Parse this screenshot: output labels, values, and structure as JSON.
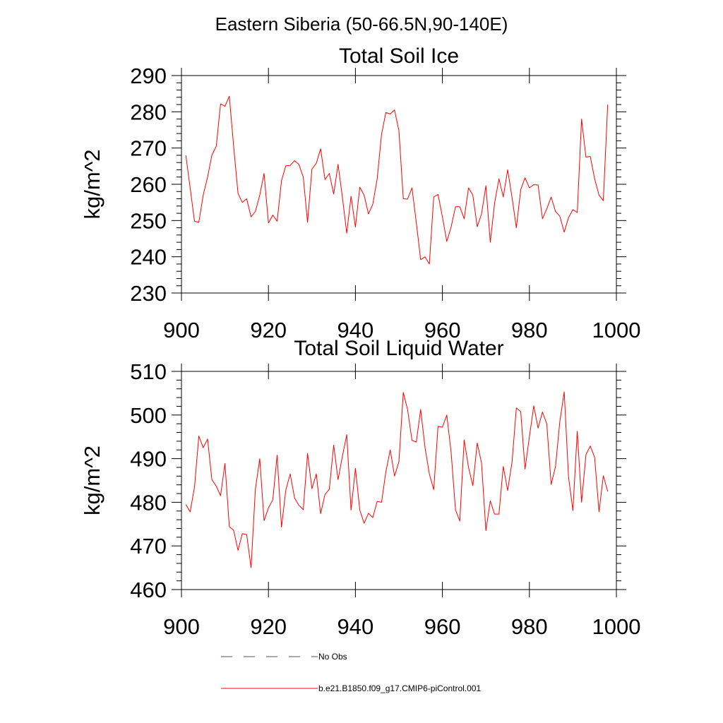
{
  "figure": {
    "title": "Eastern Siberia (50-66.5N,90-140E)"
  },
  "legend": [
    {
      "label": "No Obs",
      "color": "#4a4f8a",
      "style": "dashed"
    },
    {
      "label": "b.e21.B1850.f09_g17.CMIP6-piControl.001",
      "color": "#ff0000",
      "style": "solid"
    }
  ],
  "chart_data": [
    {
      "type": "line",
      "title": "Total Soil Ice",
      "ylabel": "kg/m^2",
      "xlabel": "",
      "xlim": [
        900,
        1000
      ],
      "ylim": [
        230,
        290
      ],
      "xticks": [
        900,
        920,
        940,
        960,
        980,
        1000
      ],
      "yticks": [
        230,
        240,
        250,
        260,
        270,
        280,
        290
      ],
      "grid": false,
      "series": [
        {
          "name": "b.e21.B1850.f09_g17.CMIP6-piControl.001",
          "color": "#ff0000",
          "x": [
            901,
            902,
            903,
            904,
            905,
            906,
            907,
            908,
            909,
            910,
            911,
            912,
            913,
            914,
            915,
            916,
            917,
            918,
            919,
            920,
            921,
            922,
            923,
            924,
            925,
            926,
            927,
            928,
            929,
            930,
            931,
            932,
            933,
            934,
            935,
            936,
            937,
            938,
            939,
            940,
            941,
            942,
            943,
            944,
            945,
            946,
            947,
            948,
            949,
            950,
            951,
            952,
            953,
            954,
            955,
            956,
            957,
            958,
            959,
            960,
            961,
            962,
            963,
            964,
            965,
            966,
            967,
            968,
            969,
            970,
            971,
            972,
            973,
            974,
            975,
            976,
            977,
            978,
            979,
            980,
            981,
            982,
            983,
            984,
            985,
            986,
            987,
            988,
            989,
            990,
            991,
            992,
            993,
            994,
            995,
            996,
            997,
            998
          ],
          "y": [
            268,
            259,
            249.8,
            249.5,
            257,
            262,
            268,
            270.5,
            282.2,
            281.5,
            284.3,
            270.5,
            257.5,
            255,
            256,
            251,
            252.5,
            257,
            263,
            249.3,
            251.5,
            249.8,
            261,
            265.1,
            265.2,
            266.5,
            265.5,
            262,
            249.5,
            264.2,
            265.8,
            269.8,
            261.3,
            263,
            257.3,
            265.5,
            256.5,
            246.5,
            256.7,
            248.2,
            259.2,
            257,
            251.8,
            254.5,
            261.5,
            273.8,
            279.8,
            279.4,
            280.5,
            274.8,
            256,
            255.9,
            259,
            249.5,
            239.2,
            240,
            238,
            256.5,
            257.2,
            251,
            244.2,
            248.2,
            253.8,
            253.8,
            250.5,
            259,
            257,
            248.3,
            251.8,
            259.6,
            244,
            254.8,
            261.5,
            256.5,
            264,
            256.4,
            248,
            258.5,
            261.8,
            259,
            259.9,
            259.8,
            250.5,
            253.2,
            256.5,
            252.5,
            251.2,
            246.8,
            250.8,
            253,
            252.2,
            278,
            267.5,
            267.7,
            261.5,
            257,
            255.5,
            282
          ]
        }
      ]
    },
    {
      "type": "line",
      "title": "Total Soil Liquid Water",
      "ylabel": "kg/m^2",
      "xlabel": "",
      "xlim": [
        900,
        1000
      ],
      "ylim": [
        460,
        510
      ],
      "xticks": [
        900,
        920,
        940,
        960,
        980,
        1000
      ],
      "yticks": [
        460,
        470,
        480,
        490,
        500,
        510
      ],
      "grid": false,
      "series": [
        {
          "name": "b.e21.B1850.f09_g17.CMIP6-piControl.001",
          "color": "#ff0000",
          "x": [
            901,
            902,
            903,
            904,
            905,
            906,
            907,
            908,
            909,
            910,
            911,
            912,
            913,
            914,
            915,
            916,
            917,
            918,
            919,
            920,
            921,
            922,
            923,
            924,
            925,
            926,
            927,
            928,
            929,
            930,
            931,
            932,
            933,
            934,
            935,
            936,
            937,
            938,
            939,
            940,
            941,
            942,
            943,
            944,
            945,
            946,
            947,
            948,
            949,
            950,
            951,
            952,
            953,
            954,
            955,
            956,
            957,
            958,
            959,
            960,
            961,
            962,
            963,
            964,
            965,
            966,
            967,
            968,
            969,
            970,
            971,
            972,
            973,
            974,
            975,
            976,
            977,
            978,
            979,
            980,
            981,
            982,
            983,
            984,
            985,
            986,
            987,
            988,
            989,
            990,
            991,
            992,
            993,
            994,
            995,
            996,
            997,
            998
          ],
          "y": [
            479.5,
            477.8,
            483.5,
            495.2,
            492.5,
            494.5,
            485.2,
            483.7,
            481.5,
            488.9,
            474.4,
            473.6,
            469,
            472.8,
            472.6,
            465,
            483,
            490,
            475.8,
            478.7,
            480.6,
            490.8,
            474.3,
            482.8,
            486.5,
            481,
            479.3,
            478.3,
            491.2,
            483.1,
            486.5,
            477.4,
            481.8,
            483,
            493.1,
            485.2,
            490.5,
            495.5,
            478.2,
            487.8,
            478.2,
            475.2,
            477.5,
            476.5,
            480.2,
            480,
            487,
            492,
            486,
            489.3,
            505.2,
            501.2,
            494.2,
            493.8,
            501.3,
            492.5,
            486.5,
            482.9,
            497.4,
            497.2,
            500,
            491.5,
            478.3,
            475.7,
            494.3,
            488,
            483.8,
            493.6,
            489,
            473.5,
            480.3,
            477.3,
            477.3,
            488.2,
            482.7,
            489.2,
            501.6,
            500.8,
            487.6,
            495,
            502.1,
            497,
            500.7,
            498,
            484.1,
            488.2,
            498.5,
            505.3,
            485.8,
            478.1,
            496.3,
            480,
            490.9,
            492.9,
            490.3,
            477.8,
            486.1,
            482.5
          ]
        }
      ]
    }
  ]
}
